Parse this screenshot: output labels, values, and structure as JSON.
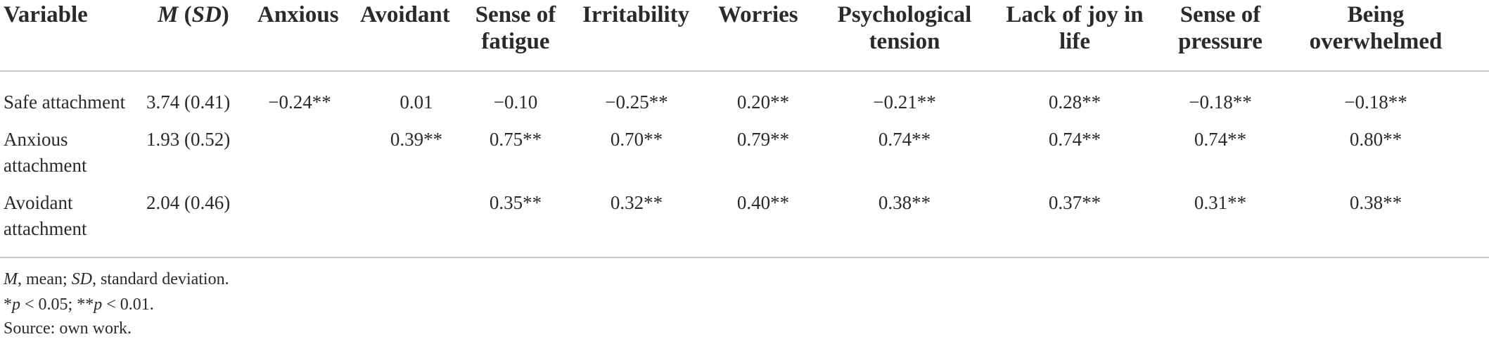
{
  "table": {
    "headers": [
      {
        "line1": "Variable",
        "line2": ""
      },
      {
        "line1": "M",
        "line1b": "SD",
        "line2": ""
      },
      {
        "line1": "Anxious",
        "line2": ""
      },
      {
        "line1": "Avoidant",
        "line2": ""
      },
      {
        "line1": "Sense of",
        "line2": "fatigue"
      },
      {
        "line1": "Irritability",
        "line2": ""
      },
      {
        "line1": "Worries",
        "line2": ""
      },
      {
        "line1": "Psychological",
        "line2": "tension"
      },
      {
        "line1": "Lack of joy in",
        "line2": "life"
      },
      {
        "line1": "Sense of",
        "line2": "pressure"
      },
      {
        "line1": "Being",
        "line2": "overwhelmed"
      }
    ],
    "rows": [
      {
        "label_line1": "Safe attachment",
        "label_line2": "",
        "cells": [
          "3.74 (0.41)",
          "−0.24**",
          "0.01",
          "−0.10",
          "−0.25**",
          "0.20**",
          "−0.21**",
          "0.28**",
          "−0.18**",
          "−0.18**"
        ]
      },
      {
        "label_line1": "Anxious",
        "label_line2": "attachment",
        "cells": [
          "1.93 (0.52)",
          "",
          "0.39**",
          "0.75**",
          "0.70**",
          "0.79**",
          "0.74**",
          "0.74**",
          "0.74**",
          "0.80**"
        ]
      },
      {
        "label_line1": "Avoidant",
        "label_line2": "attachment",
        "cells": [
          "2.04 (0.46)",
          "",
          "",
          "0.35**",
          "0.32**",
          "0.40**",
          "0.38**",
          "0.37**",
          "0.31**",
          "0.38**"
        ]
      }
    ]
  },
  "footnotes": {
    "abbrev_m": "M",
    "abbrev_m_text": ", mean; ",
    "abbrev_sd": "SD",
    "abbrev_sd_text": ", standard deviation.",
    "sig1_star": "*",
    "sig1_p": "p",
    "sig1_rest": " < 0.05; ",
    "sig2_star": "**",
    "sig2_p": "p",
    "sig2_rest": " < 0.01.",
    "source": "Source: own work."
  }
}
